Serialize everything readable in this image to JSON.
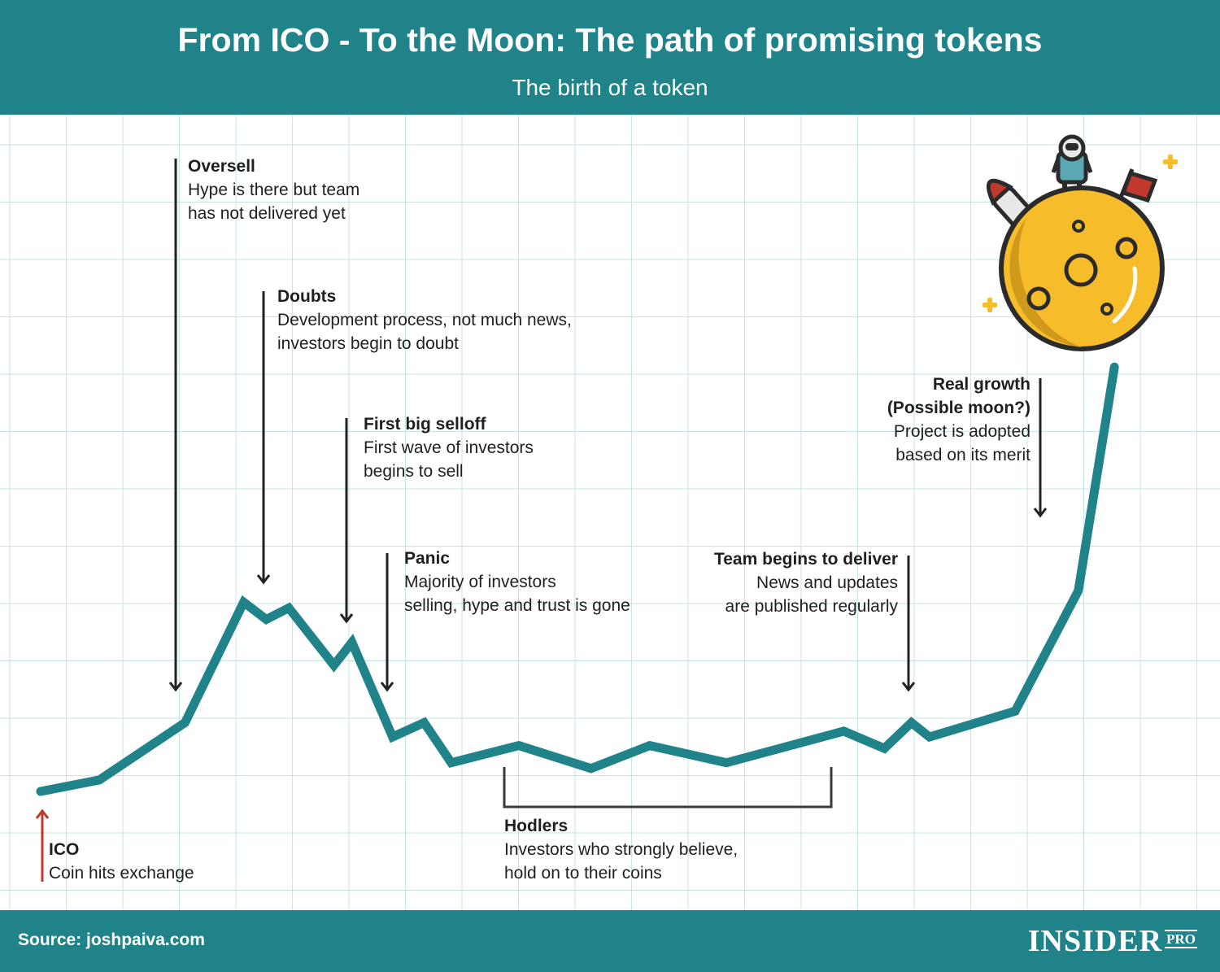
{
  "header": {
    "title": "From ICO - To the Moon: The path of promising tokens",
    "subtitle": "The birth of a token"
  },
  "footer": {
    "source": "Source: joshpaiva.com",
    "brand": "INSIDER",
    "brand_suffix": "PRO"
  },
  "annotations": {
    "ico": {
      "heading": "ICO",
      "line1": "Coin hits exchange"
    },
    "oversell": {
      "heading": "Oversell",
      "line1": "Hype is there but team",
      "line2": "has not delivered yet"
    },
    "doubts": {
      "heading": "Doubts",
      "line1": "Development process, not much news,",
      "line2": "investors begin to doubt"
    },
    "selloff": {
      "heading": "First big selloff",
      "line1": "First wave of investors",
      "line2": "begins to sell"
    },
    "panic": {
      "heading": "Panic",
      "line1": "Majority of investors",
      "line2": "selling, hype and trust is gone"
    },
    "hodlers": {
      "heading": "Hodlers",
      "line1": "Investors who strongly believe,",
      "line2": "hold on to their coins"
    },
    "deliver": {
      "heading": "Team begins to deliver",
      "line1": "News and updates",
      "line2": "are published regularly"
    },
    "growth": {
      "heading1": "Real growth",
      "heading2": "(Possible moon?)",
      "line1": "Project is adopted",
      "line2": "based on its merit"
    }
  },
  "colors": {
    "header_bg": "#1f8389",
    "line": "#1f8389",
    "grid": "#c6e3e6",
    "arrow": "#222222",
    "ico_arrow": "#c0392b",
    "moon": "#f6bc2a",
    "moon_shade": "#cf9a1c"
  },
  "chart_data": {
    "type": "line",
    "x": [
      0,
      1.3,
      3.2,
      4.5,
      5.0,
      5.5,
      6.5,
      6.9,
      7.8,
      8.5,
      9.1,
      10.6,
      12.2,
      13.5,
      15.2,
      17.8,
      18.7,
      19.3,
      19.7,
      21.6,
      23.0
    ],
    "values": [
      0.0,
      0.2,
      1.2,
      3.3,
      3.0,
      3.2,
      2.2,
      2.6,
      0.95,
      1.2,
      0.5,
      0.8,
      0.4,
      0.8,
      0.5,
      1.05,
      0.75,
      1.2,
      0.95,
      1.4,
      3.5
    ],
    "y_end_peak": 7.4,
    "grid": true
  }
}
